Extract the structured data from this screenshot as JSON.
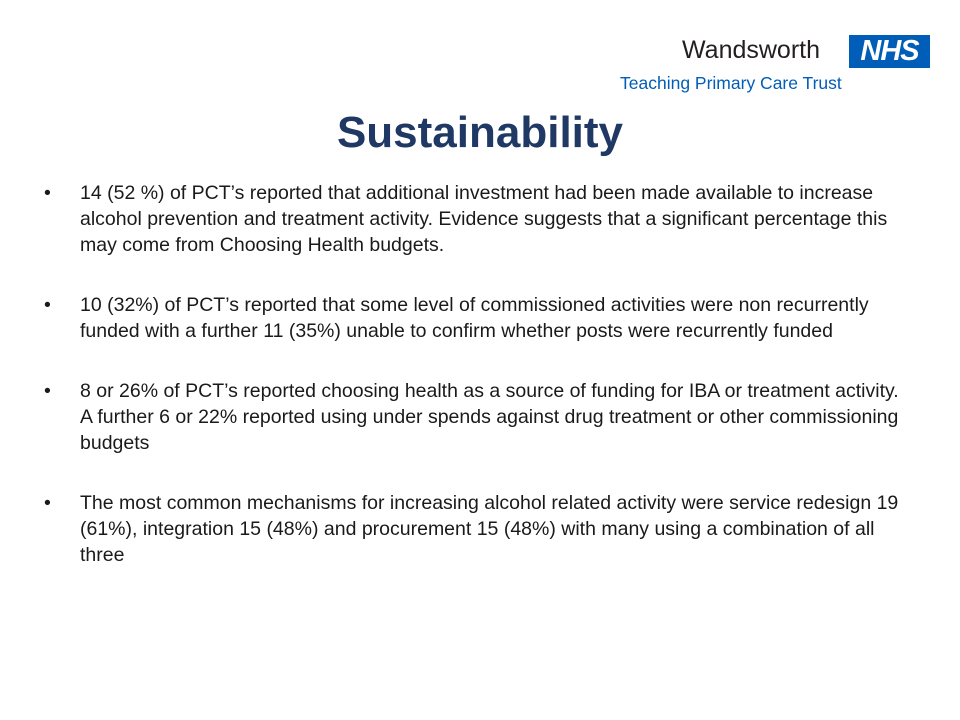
{
  "header": {
    "org_name": "Wandsworth",
    "nhs_logo": "NHS",
    "trust_name": "Teaching Primary Care Trust"
  },
  "slide": {
    "title": "Sustainability",
    "bullets": [
      "14 (52 %) of PCT’s reported that additional investment had been made available to increase alcohol prevention and treatment activity. Evidence suggests that a significant percentage this may come from  Choosing Health budgets.",
      "10 (32%) of PCT’s reported that some level of commissioned activities were non recurrently funded with a further 11 (35%) unable to confirm whether posts were recurrently funded",
      "8 or 26% of PCT’s reported choosing health as a source of funding for IBA or treatment activity. A further 6 or 22% reported using under spends against drug treatment or other commissioning budgets",
      "The most common mechanisms for increasing alcohol related activity were service redesign 19 (61%), integration 15 (48%) and procurement 15 (48%) with many using a combination of all three"
    ]
  },
  "colors": {
    "title": "#1f3864",
    "nhs_blue": "#005eb8",
    "text": "#1a1a1a"
  }
}
